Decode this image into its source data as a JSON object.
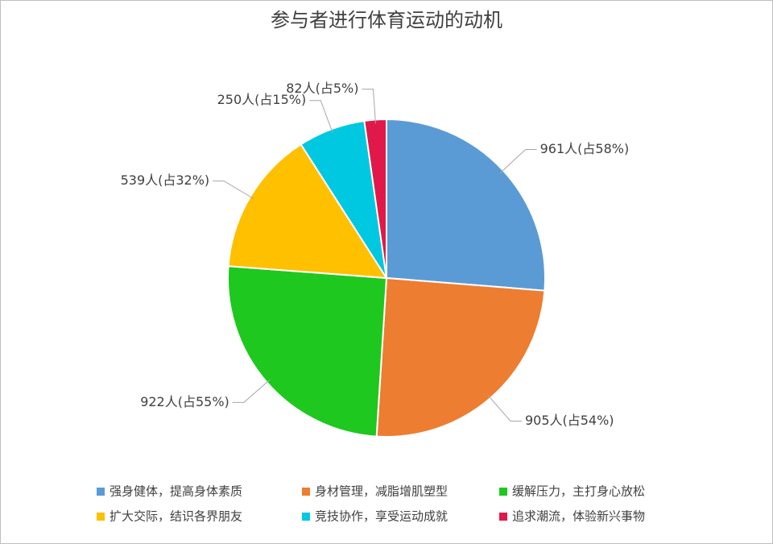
{
  "chart_data": {
    "type": "pie",
    "title": "参与者进行体育运动的动机",
    "categories": [
      "强身健体，提高身体素质",
      "身材管理，减脂增肌塑型",
      "缓解压力，主打身心放松",
      "扩大交际，结识各界朋友",
      "竞技协作，享受运动成就",
      "追求潮流，体验新兴事物"
    ],
    "values": [
      961,
      905,
      922,
      539,
      250,
      82
    ],
    "value_labels": [
      "961人(占58%)",
      "905人(占54%)",
      "922人(占55%)",
      "539人(占32%)",
      "250人(占15%)",
      "82人(占5%)"
    ],
    "colors": [
      "#5b9bd5",
      "#ed7d31",
      "#1ec81e",
      "#ffc000",
      "#00c8e0",
      "#e0194a"
    ],
    "legend": "bottom"
  }
}
